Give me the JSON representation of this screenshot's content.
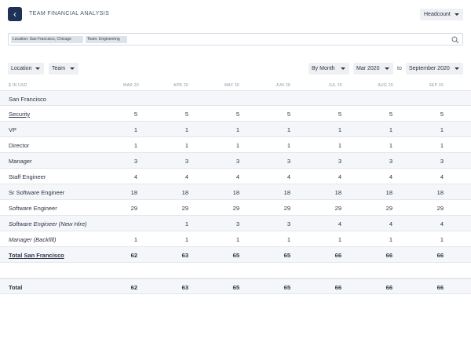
{
  "header": {
    "title": "TEAM FINANCIAL ANALYSIS",
    "metric": "Headcount"
  },
  "search": {
    "chips": [
      "Location: San Francisco, Chicago",
      "Team: Engineering"
    ]
  },
  "filters": {
    "location": "Location",
    "team": "Team",
    "granularity": "By Month",
    "from": "Mar 2020",
    "to_label": "to",
    "to": "September 2020"
  },
  "table": {
    "unit_label": "$ IN USD",
    "months": [
      "MAR 20",
      "APR 20",
      "MAY 20",
      "JUN 20",
      "JUL 20",
      "AUG 20",
      "SEP 20"
    ],
    "group": "San Francisco",
    "rows": [
      {
        "label": "Security",
        "style": "link",
        "values": [
          "5",
          "5",
          "5",
          "5",
          "5",
          "5",
          "5"
        ]
      },
      {
        "label": "VP",
        "style": "",
        "values": [
          "1",
          "1",
          "1",
          "1",
          "1",
          "1",
          "1"
        ]
      },
      {
        "label": "Director",
        "style": "",
        "values": [
          "1",
          "1",
          "1",
          "1",
          "1",
          "1",
          "1"
        ]
      },
      {
        "label": "Manager",
        "style": "",
        "values": [
          "3",
          "3",
          "3",
          "3",
          "3",
          "3",
          "3"
        ]
      },
      {
        "label": "Staff Engineer",
        "style": "",
        "values": [
          "4",
          "4",
          "4",
          "4",
          "4",
          "4",
          "4"
        ]
      },
      {
        "label": "Sr Software Engineer",
        "style": "",
        "values": [
          "18",
          "18",
          "18",
          "18",
          "18",
          "18",
          "18"
        ]
      },
      {
        "label": "Software Engineer",
        "style": "",
        "values": [
          "29",
          "29",
          "29",
          "29",
          "29",
          "29",
          "29"
        ]
      },
      {
        "label": "Software Engineer (New Hire)",
        "style": "italic",
        "values": [
          "",
          "1",
          "3",
          "3",
          "4",
          "4",
          "4"
        ]
      },
      {
        "label": "Manager (Backfill)",
        "style": "italic",
        "values": [
          "1",
          "1",
          "1",
          "1",
          "1",
          "1",
          "1"
        ]
      },
      {
        "label": "Total San Francisco",
        "style": "total",
        "values": [
          "62",
          "63",
          "65",
          "65",
          "66",
          "66",
          "66"
        ]
      }
    ],
    "total": {
      "label": "Total",
      "values": [
        "62",
        "63",
        "65",
        "65",
        "66",
        "66",
        "66"
      ]
    }
  }
}
